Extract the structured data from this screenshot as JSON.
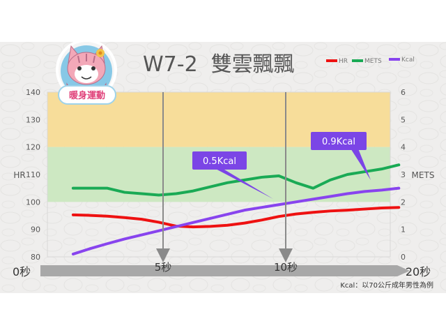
{
  "title": "W7-2  雙雲飄飄",
  "badge": {
    "text": "暖身運動"
  },
  "legend": [
    {
      "name": "HR",
      "color": "#ee1111"
    },
    {
      "name": "METS",
      "color": "#1aaa55"
    },
    {
      "name": "Kcal",
      "color": "#8844ee"
    }
  ],
  "left_axis": {
    "label": "HR",
    "ticks": [
      "140",
      "130",
      "120",
      "110",
      "100",
      "90",
      "80"
    ]
  },
  "right_axis": {
    "label": "METS",
    "ticks": [
      "6",
      "5",
      "4",
      "3",
      "2",
      "1",
      "0"
    ]
  },
  "time_axis": {
    "start": "0秒",
    "mid1": "5秒",
    "mid2": "10秒",
    "end": "20秒"
  },
  "callouts": {
    "c1": "0.5Kcal",
    "c2": "0.9Kcal"
  },
  "footnote": "Kcal：以70公斤成年男性為例",
  "colors": {
    "yellow_zone": "#f7dd9a",
    "green_zone": "#cde8c2",
    "callout": "#7b45e6",
    "arrow": "#8a8a8a"
  },
  "chart_data": {
    "type": "line",
    "x": [
      0,
      1,
      2,
      3,
      4,
      5,
      6,
      7,
      8,
      9,
      10,
      11,
      12,
      13,
      14,
      15,
      16,
      17,
      18,
      19
    ],
    "xlim": [
      0,
      20
    ],
    "series": [
      {
        "name": "HR",
        "axis": "left",
        "values": [
          95.3,
          95.1,
          94.8,
          94.3,
          93.7,
          92.6,
          91.2,
          90.9,
          91.1,
          91.5,
          92.3,
          93.4,
          94.7,
          95.6,
          96.2,
          96.7,
          97.0,
          97.4,
          97.8,
          98.0
        ]
      },
      {
        "name": "METS",
        "axis": "right",
        "values": [
          2.5,
          2.5,
          2.5,
          2.35,
          2.3,
          2.25,
          2.3,
          2.4,
          2.55,
          2.7,
          2.8,
          2.9,
          2.95,
          2.7,
          2.5,
          2.8,
          3.0,
          3.1,
          3.2,
          3.35
        ]
      },
      {
        "name": "Kcal",
        "axis": "right",
        "values": [
          0.1,
          0.3,
          0.48,
          0.65,
          0.8,
          0.95,
          1.1,
          1.25,
          1.4,
          1.55,
          1.7,
          1.8,
          1.9,
          2.0,
          2.1,
          2.2,
          2.3,
          2.38,
          2.43,
          2.5
        ]
      }
    ],
    "ylim_left": [
      80,
      140
    ],
    "ylim_right": [
      0,
      6
    ],
    "zones": [
      {
        "name": "high",
        "from": 120,
        "to": 140,
        "color": "#f7dd9a"
      },
      {
        "name": "target",
        "from": 100,
        "to": 120,
        "color": "#cde8c2"
      }
    ],
    "markers": [
      {
        "x": 5,
        "label": "5秒"
      },
      {
        "x": 10,
        "label": "10秒"
      }
    ]
  }
}
